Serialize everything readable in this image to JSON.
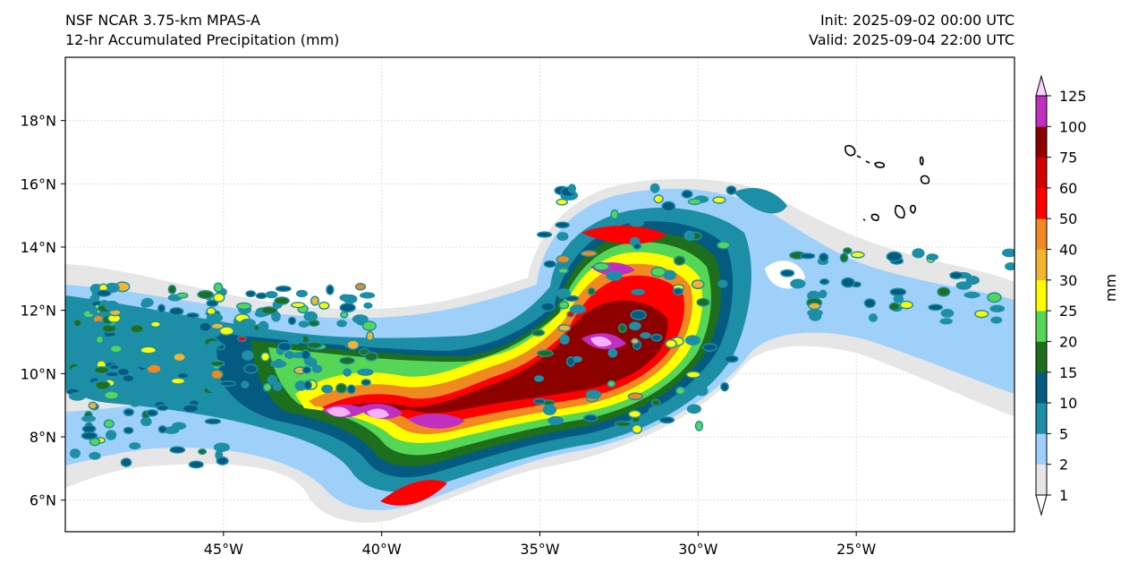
{
  "header": {
    "model": "NSF NCAR 3.75-km MPAS-A",
    "field": "12-hr Accumulated Precipitation (mm)",
    "init": "Init: 2025-09-02 00:00 UTC",
    "valid": "Valid: 2025-09-04 22:00 UTC"
  },
  "map": {
    "lon_range": [
      -50,
      -20
    ],
    "lat_range": [
      5,
      20
    ],
    "lon_ticks": [
      {
        "value": -45,
        "label": "45°W"
      },
      {
        "value": -40,
        "label": "40°W"
      },
      {
        "value": -35,
        "label": "35°W"
      },
      {
        "value": -30,
        "label": "30°W"
      },
      {
        "value": -25,
        "label": "25°W"
      }
    ],
    "lat_ticks": [
      {
        "value": 6,
        "label": "6°N"
      },
      {
        "value": 8,
        "label": "8°N"
      },
      {
        "value": 10,
        "label": "10°N"
      },
      {
        "value": 12,
        "label": "12°N"
      },
      {
        "value": 14,
        "label": "14°N"
      },
      {
        "value": 16,
        "label": "16°N"
      },
      {
        "value": 18,
        "label": "18°N"
      }
    ],
    "gridlines": true
  },
  "colorbar": {
    "title": "mm",
    "levels": [
      1,
      2,
      5,
      10,
      15,
      20,
      25,
      30,
      40,
      50,
      60,
      75,
      100,
      125
    ],
    "level_labels": [
      "1",
      "2",
      "5",
      "10",
      "15",
      "20",
      "25",
      "30",
      "40",
      "50",
      "60",
      "75",
      "100",
      "125"
    ],
    "colors": [
      "#e6e6e6",
      "#9fd0fa",
      "#1c8fa6",
      "#055a82",
      "#1d6e1d",
      "#56d656",
      "#fefe00",
      "#f5b430",
      "#f08a20",
      "#ff0000",
      "#d20000",
      "#8c0000",
      "#c02fc0",
      "#f6b0f6"
    ],
    "extend": "both",
    "under_color": "#ffffff",
    "over_color": "#fbd2fb"
  }
}
